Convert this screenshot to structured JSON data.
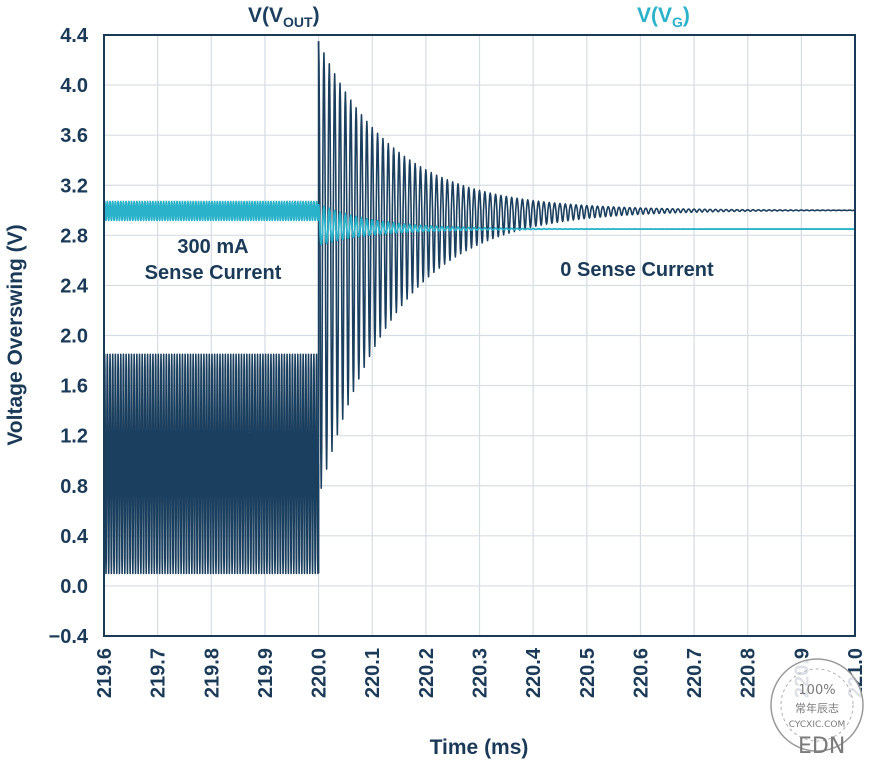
{
  "chart_data": {
    "type": "line",
    "xlabel": "Time (ms)",
    "ylabel": "Voltage Overswing (V)",
    "xlim": [
      219.6,
      221.0
    ],
    "ylim": [
      -0.4,
      4.4
    ],
    "x_ticks": [
      "219.6",
      "219.7",
      "219.8",
      "219.9",
      "220.0",
      "220.1",
      "220.2",
      "220.3",
      "220.4",
      "220.5",
      "220.6",
      "220.7",
      "220.8",
      "220.9",
      "221.0"
    ],
    "y_ticks": [
      "4.4",
      "4.0",
      "3.6",
      "3.2",
      "2.8",
      "2.4",
      "2.0",
      "1.6",
      "1.2",
      "0.8",
      "0.4",
      "0.0",
      "−0.4"
    ],
    "grid": true,
    "series": [
      {
        "name_main": "V(V",
        "name_sub": "OUT",
        "name_end": ")",
        "color": "#1b3f5e",
        "segments": [
          {
            "x_start": 219.6,
            "x_end": 220.0,
            "kind": "oscillation",
            "min": 0.1,
            "max": 1.85,
            "period_ms": 0.005
          },
          {
            "x_start": 220.0,
            "x_end": 221.0,
            "kind": "damped_ringing",
            "settle": 3.0,
            "peak": 4.35,
            "trough": 0.7,
            "decay_tau_ms": 0.14,
            "period_ms": 0.01
          }
        ]
      },
      {
        "name_main": "V(V",
        "name_sub": "G",
        "name_end": ")",
        "color": "#29b2c9",
        "segments": [
          {
            "x_start": 219.6,
            "x_end": 220.0,
            "kind": "oscillation",
            "min": 2.92,
            "max": 3.07,
            "period_ms": 0.005
          },
          {
            "x_start": 220.0,
            "x_end": 221.0,
            "kind": "damped_ringing",
            "settle": 2.85,
            "peak": 3.05,
            "trough": 2.72,
            "decay_tau_ms": 0.1,
            "period_ms": 0.01
          }
        ]
      }
    ],
    "annotations": [
      {
        "lines": [
          "300 mA",
          "Sense Current"
        ]
      },
      {
        "lines": [
          "0 Sense Current"
        ]
      }
    ]
  },
  "watermark": {
    "badge": "100%",
    "cn_text": "常年辰志",
    "site": "CYCXIC.COM",
    "edn": "EDN"
  }
}
